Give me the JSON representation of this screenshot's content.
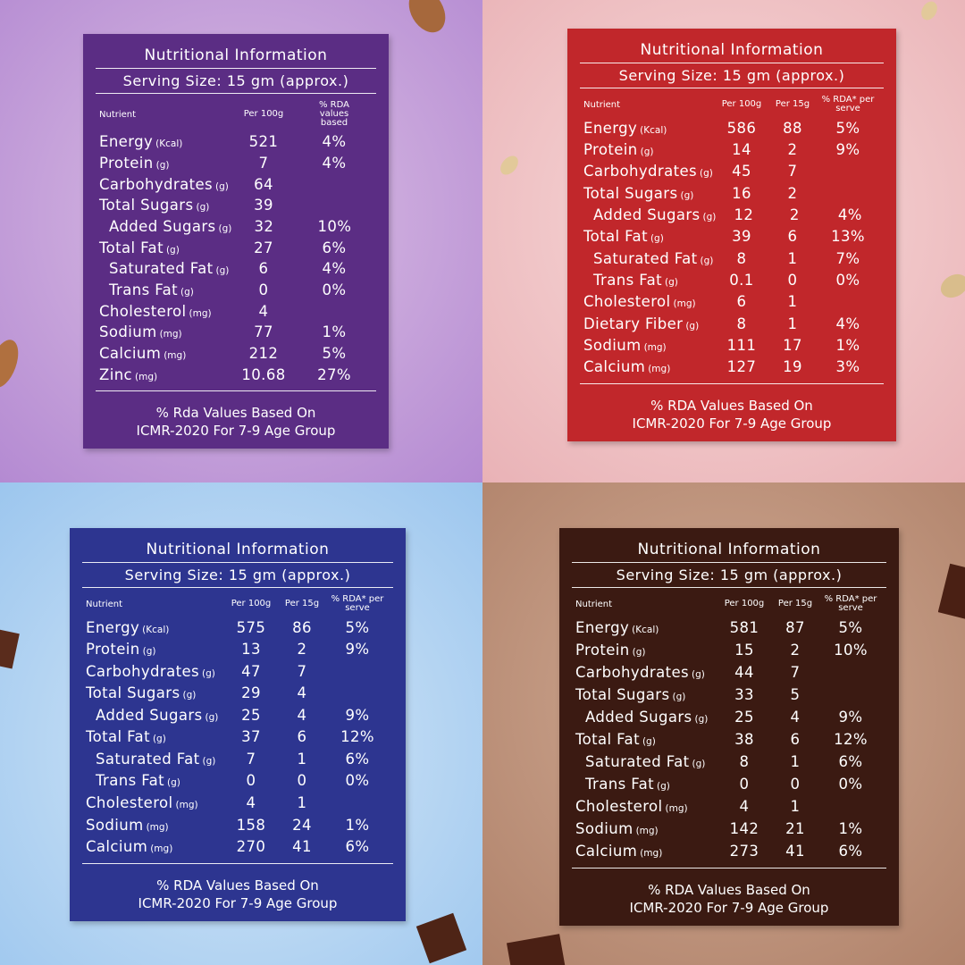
{
  "panels": [
    {
      "color": "#5b2d84",
      "title": "Nutritional Information",
      "serving": "Serving Size: 15 gm (approx.)",
      "headers": [
        "Nutrient",
        "Per 100g",
        "% RDA values based"
      ],
      "rows": [
        {
          "name": "Energy",
          "unit": "(Kcal)",
          "per100": "521",
          "rda": "4%"
        },
        {
          "name": "Protein",
          "unit": "(g)",
          "per100": "7",
          "rda": "4%"
        },
        {
          "name": "Carbohydrates",
          "unit": "(g)",
          "per100": "64"
        },
        {
          "name": "Total Sugars",
          "unit": "(g)",
          "per100": "39"
        },
        {
          "name": "Added Sugars",
          "unit": "(g)",
          "per100": "32",
          "rda": "10%",
          "sub": true
        },
        {
          "name": "Total Fat",
          "unit": "(g)",
          "per100": "27",
          "rda": "6%"
        },
        {
          "name": "Saturated Fat",
          "unit": "(g)",
          "per100": "6",
          "rda": "4%",
          "sub": true
        },
        {
          "name": "Trans Fat",
          "unit": "(g)",
          "per100": "0",
          "rda": "0%",
          "sub": true
        },
        {
          "name": "Cholesterol",
          "unit": "(mg)",
          "per100": "4"
        },
        {
          "name": "Sodium",
          "unit": "(mg)",
          "per100": "77",
          "rda": "1%"
        },
        {
          "name": "Calcium",
          "unit": "(mg)",
          "per100": "212",
          "rda": "5%"
        },
        {
          "name": "Zinc",
          "unit": "(mg)",
          "per100": "10.68",
          "rda": "27%"
        }
      ],
      "footer": [
        "% Rda Values Based On",
        "ICMR-2020 For 7-9 Age Group"
      ]
    },
    {
      "color": "#c1272b",
      "title": "Nutritional Information",
      "serving": "Serving Size: 15 gm (approx.)",
      "headers": [
        "Nutrient",
        "Per 100g",
        "Per 15g",
        "% RDA* per serve"
      ],
      "rows": [
        {
          "name": "Energy",
          "unit": "(Kcal)",
          "per100": "586",
          "per15": "88",
          "rda": "5%"
        },
        {
          "name": "Protein",
          "unit": "(g)",
          "per100": "14",
          "per15": "2",
          "rda": "9%"
        },
        {
          "name": "Carbohydrates",
          "unit": "(g)",
          "per100": "45",
          "per15": "7"
        },
        {
          "name": "Total Sugars",
          "unit": "(g)",
          "per100": "16",
          "per15": "2"
        },
        {
          "name": "Added Sugars",
          "unit": "(g)",
          "per100": "12",
          "per15": "2",
          "rda": "4%",
          "sub": true
        },
        {
          "name": "Total Fat",
          "unit": "(g)",
          "per100": "39",
          "per15": "6",
          "rda": "13%"
        },
        {
          "name": "Saturated Fat",
          "unit": "(g)",
          "per100": "8",
          "per15": "1",
          "rda": "7%",
          "sub": true
        },
        {
          "name": "Trans Fat",
          "unit": "(g)",
          "per100": "0.1",
          "per15": "0",
          "rda": "0%",
          "sub": true
        },
        {
          "name": "Cholesterol",
          "unit": "(mg)",
          "per100": "6",
          "per15": "1"
        },
        {
          "name": "Dietary Fiber",
          "unit": "(g)",
          "per100": "8",
          "per15": "1",
          "rda": "4%"
        },
        {
          "name": "Sodium",
          "unit": "(mg)",
          "per100": "111",
          "per15": "17",
          "rda": "1%"
        },
        {
          "name": "Calcium",
          "unit": "(mg)",
          "per100": "127",
          "per15": "19",
          "rda": "3%"
        }
      ],
      "footer": [
        "% RDA Values Based On",
        "ICMR-2020 For 7-9 Age Group"
      ]
    },
    {
      "color": "#2d3590",
      "title": "Nutritional Information",
      "serving": "Serving Size: 15 gm (approx.)",
      "headers": [
        "Nutrient",
        "Per 100g",
        "Per 15g",
        "% RDA* per serve"
      ],
      "rows": [
        {
          "name": "Energy",
          "unit": "(Kcal)",
          "per100": "575",
          "per15": "86",
          "rda": "5%"
        },
        {
          "name": "Protein",
          "unit": "(g)",
          "per100": "13",
          "per15": "2",
          "rda": "9%"
        },
        {
          "name": "Carbohydrates",
          "unit": "(g)",
          "per100": "47",
          "per15": "7"
        },
        {
          "name": "Total Sugars",
          "unit": "(g)",
          "per100": "29",
          "per15": "4"
        },
        {
          "name": "Added Sugars",
          "unit": "(g)",
          "per100": "25",
          "per15": "4",
          "rda": "9%",
          "sub": true
        },
        {
          "name": "Total Fat",
          "unit": "(g)",
          "per100": "37",
          "per15": "6",
          "rda": "12%"
        },
        {
          "name": "Saturated Fat",
          "unit": "(g)",
          "per100": "7",
          "per15": "1",
          "rda": "6%",
          "sub": true
        },
        {
          "name": "Trans Fat",
          "unit": "(g)",
          "per100": "0",
          "per15": "0",
          "rda": "0%",
          "sub": true
        },
        {
          "name": "Cholesterol",
          "unit": "(mg)",
          "per100": "4",
          "per15": "1"
        },
        {
          "name": "Sodium",
          "unit": "(mg)",
          "per100": "158",
          "per15": "24",
          "rda": "1%"
        },
        {
          "name": "Calcium",
          "unit": "(mg)",
          "per100": "270",
          "per15": "41",
          "rda": "6%"
        }
      ],
      "footer": [
        "% RDA Values Based On",
        "ICMR-2020 For 7-9 Age Group"
      ]
    },
    {
      "color": "#3b1a12",
      "title": "Nutritional Information",
      "serving": "Serving Size: 15 gm (approx.)",
      "headers": [
        "Nutrient",
        "Per 100g",
        "Per 15g",
        "% RDA* per serve"
      ],
      "rows": [
        {
          "name": "Energy",
          "unit": "(Kcal)",
          "per100": "581",
          "per15": "87",
          "rda": "5%"
        },
        {
          "name": "Protein",
          "unit": "(g)",
          "per100": "15",
          "per15": "2",
          "rda": "10%"
        },
        {
          "name": "Carbohydrates",
          "unit": "(g)",
          "per100": "44",
          "per15": "7"
        },
        {
          "name": "Total Sugars",
          "unit": "(g)",
          "per100": "33",
          "per15": "5"
        },
        {
          "name": "Added Sugars",
          "unit": "(g)",
          "per100": "25",
          "per15": "4",
          "rda": "9%",
          "sub": true
        },
        {
          "name": "Total Fat",
          "unit": "(g)",
          "per100": "38",
          "per15": "6",
          "rda": "12%"
        },
        {
          "name": "Saturated Fat",
          "unit": "(g)",
          "per100": "8",
          "per15": "1",
          "rda": "6%",
          "sub": true
        },
        {
          "name": "Trans Fat",
          "unit": "(g)",
          "per100": "0",
          "per15": "0",
          "rda": "0%",
          "sub": true
        },
        {
          "name": "Cholesterol",
          "unit": "(mg)",
          "per100": "4",
          "per15": "1"
        },
        {
          "name": "Sodium",
          "unit": "(mg)",
          "per100": "142",
          "per15": "21",
          "rda": "1%"
        },
        {
          "name": "Calcium",
          "unit": "(mg)",
          "per100": "273",
          "per15": "41",
          "rda": "6%"
        }
      ],
      "footer": [
        "% RDA Values Based On",
        "ICMR-2020 For 7-9 Age Group"
      ]
    }
  ]
}
